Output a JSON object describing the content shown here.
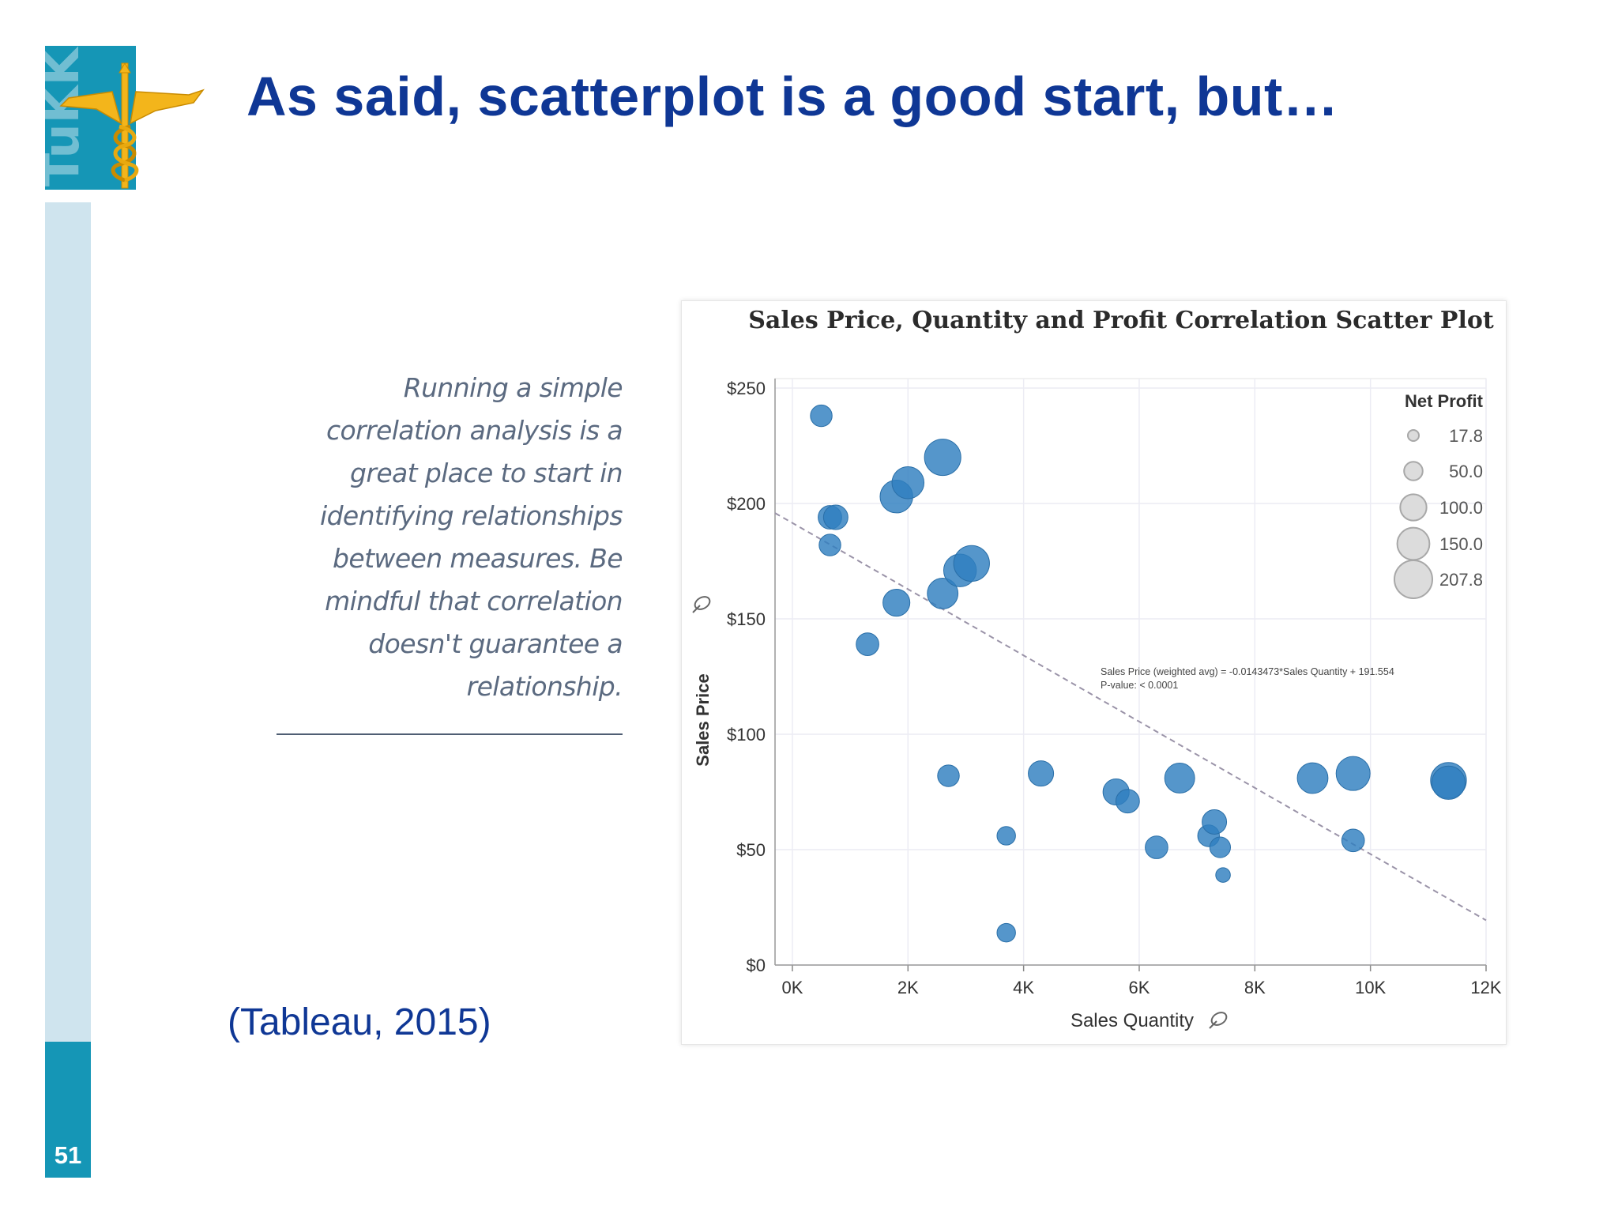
{
  "slide": {
    "title": "As said, scatterplot is a good start, but…",
    "logo_text": "TuKKK",
    "page_number": "51",
    "quote_lines": [
      "Running a simple",
      "correlation analysis is a",
      "great place to start in",
      "identifying relationships",
      "between measures. Be",
      "mindful that correlation",
      "doesn't guarantee a",
      "relationship."
    ],
    "citation": "(Tableau, 2015)"
  },
  "colors": {
    "title": "#0f3795",
    "accent": "#1596b6",
    "strip_light": "#cfe4ee",
    "bubble": "#2f7fbf",
    "logo_gold": "#f3b51b"
  },
  "chart_data": {
    "type": "scatter",
    "title": "Sales Price, Quantity and Profit Correlation Scatter Plot",
    "xlabel": "Sales Quantity",
    "ylabel": "Sales Price",
    "xlim": [
      -300,
      12000
    ],
    "ylim": [
      0,
      250
    ],
    "x_ticks": [
      0,
      2000,
      4000,
      6000,
      8000,
      10000,
      12000
    ],
    "x_tick_labels": [
      "0K",
      "2K",
      "4K",
      "6K",
      "8K",
      "10K",
      "12K"
    ],
    "y_ticks": [
      0,
      50,
      100,
      150,
      200,
      250
    ],
    "y_tick_labels": [
      "$0",
      "$50",
      "$100",
      "$150",
      "$200",
      "$250"
    ],
    "grid": true,
    "size_legend": {
      "title": "Net Profit",
      "position": "top-right",
      "entries": [
        {
          "label": "17.8",
          "value": 17.8
        },
        {
          "label": "50.0",
          "value": 50.0
        },
        {
          "label": "100.0",
          "value": 100.0
        },
        {
          "label": "150.0",
          "value": 150.0
        },
        {
          "label": "207.8",
          "value": 207.8
        }
      ]
    },
    "trend_line": {
      "equation_text": "Sales Price (weighted avg) = -0.0143473*Sales Quantity + 191.554",
      "pvalue_text": "P-value: < 0.0001",
      "slope": -0.0143473,
      "intercept": 191.554
    },
    "points": [
      {
        "x": 500,
        "y": 238,
        "size": 55
      },
      {
        "x": 3700,
        "y": 14,
        "size": 40
      },
      {
        "x": 650,
        "y": 194,
        "size": 65
      },
      {
        "x": 750,
        "y": 194,
        "size": 70
      },
      {
        "x": 650,
        "y": 182,
        "size": 55
      },
      {
        "x": 1800,
        "y": 203,
        "size": 125
      },
      {
        "x": 2000,
        "y": 209,
        "size": 120
      },
      {
        "x": 2600,
        "y": 220,
        "size": 155
      },
      {
        "x": 1800,
        "y": 157,
        "size": 85
      },
      {
        "x": 2600,
        "y": 161,
        "size": 110
      },
      {
        "x": 2900,
        "y": 171,
        "size": 125
      },
      {
        "x": 3100,
        "y": 174,
        "size": 150
      },
      {
        "x": 1300,
        "y": 139,
        "size": 60
      },
      {
        "x": 2700,
        "y": 82,
        "size": 55
      },
      {
        "x": 4300,
        "y": 83,
        "size": 75
      },
      {
        "x": 3700,
        "y": 56,
        "size": 40
      },
      {
        "x": 5600,
        "y": 75,
        "size": 80
      },
      {
        "x": 5800,
        "y": 71,
        "size": 65
      },
      {
        "x": 6300,
        "y": 51,
        "size": 60
      },
      {
        "x": 6700,
        "y": 81,
        "size": 105
      },
      {
        "x": 7200,
        "y": 56,
        "size": 55
      },
      {
        "x": 7300,
        "y": 62,
        "size": 70
      },
      {
        "x": 7400,
        "y": 51,
        "size": 50
      },
      {
        "x": 7450,
        "y": 39,
        "size": 25
      },
      {
        "x": 9000,
        "y": 81,
        "size": 110
      },
      {
        "x": 9700,
        "y": 83,
        "size": 135
      },
      {
        "x": 9700,
        "y": 54,
        "size": 60
      },
      {
        "x": 11350,
        "y": 80,
        "size": 150
      },
      {
        "x": 11350,
        "y": 79,
        "size": 130
      }
    ]
  }
}
